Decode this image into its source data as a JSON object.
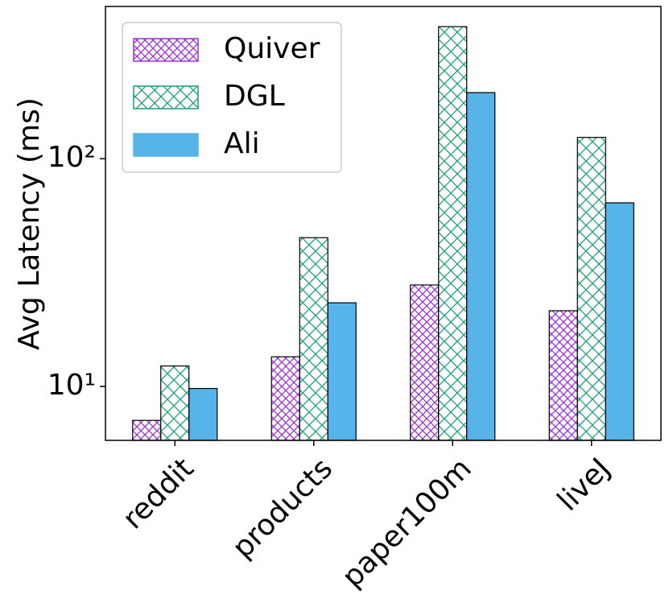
{
  "chart_data": {
    "type": "bar",
    "y_label": "Avg Latency (ms)",
    "log_scale": true,
    "legend_position": "upper left",
    "categories": [
      "reddit",
      "products",
      "paper100m",
      "liveJ"
    ],
    "series": [
      {
        "name": "Quiver",
        "color": "#9b30d0",
        "hatch": true,
        "values": [
          7.1,
          13.5,
          27.9,
          21.5
        ]
      },
      {
        "name": "DGL",
        "color": "#1a9e77",
        "hatch": true,
        "values": [
          12.3,
          45,
          380,
          124
        ]
      },
      {
        "name": "Ali",
        "color": "#56b4e9",
        "hatch": false,
        "values": [
          9.8,
          23.3,
          195,
          64
        ]
      }
    ],
    "ylim": [
      5.8,
      466
    ],
    "yticks": [
      {
        "value": 10,
        "label": "10¹"
      },
      {
        "value": 100,
        "label": "10²"
      }
    ]
  }
}
